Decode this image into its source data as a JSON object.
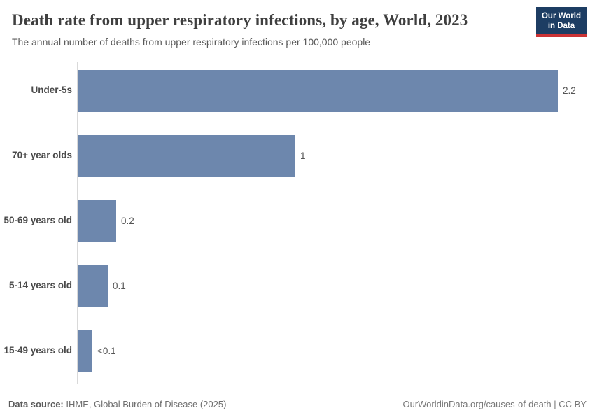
{
  "header": {
    "title": "Death rate from upper respiratory infections, by age, World, 2023",
    "subtitle": "The annual number of deaths from upper respiratory infections per 100,000 people"
  },
  "logo": {
    "line1": "Our World",
    "line2": "in Data",
    "background_color": "#1d3d63",
    "accent_color": "#cb3335"
  },
  "chart_data": {
    "type": "bar",
    "orientation": "horizontal",
    "title": "Death rate from upper respiratory infections, by age, World, 2023",
    "subtitle": "The annual number of deaths from upper respiratory infections per 100,000 people",
    "categories": [
      "Under-5s",
      "70+ year olds",
      "50-69 years old",
      "5-14 years old",
      "15-49 years old"
    ],
    "values": [
      2.2,
      1,
      0.18,
      0.14,
      0.07
    ],
    "value_labels": [
      "2.2",
      "1",
      "0.2",
      "0.1",
      "<0.1"
    ],
    "xlabel": "",
    "ylabel": "",
    "xlim": [
      0,
      2.2
    ],
    "grid": false,
    "legend": "none",
    "bar_color": "#6d87ad",
    "axis_color": "#d9d9d9"
  },
  "footer": {
    "datasource_label": "Data source:",
    "datasource_value": " IHME, Global Burden of Disease (2025)",
    "credit": "OurWorldinData.org/causes-of-death | CC BY"
  }
}
